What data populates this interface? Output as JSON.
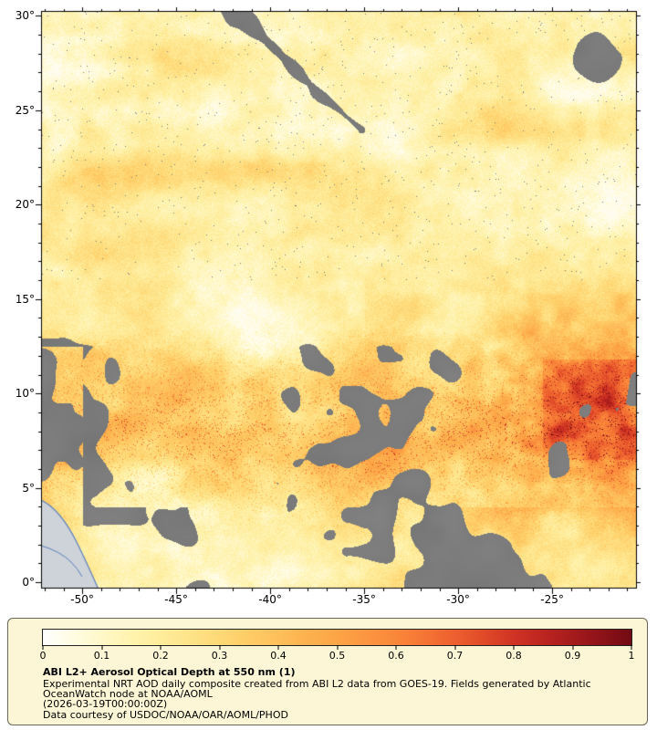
{
  "map": {
    "y_axis": {
      "ticks": [
        {
          "label": "30°",
          "lat": 30
        },
        {
          "label": "25°",
          "lat": 25
        },
        {
          "label": "20°",
          "lat": 20
        },
        {
          "label": "15°",
          "lat": 15
        },
        {
          "label": "10°",
          "lat": 10
        },
        {
          "label": "5°",
          "lat": 5
        },
        {
          "label": "0°",
          "lat": 0
        }
      ]
    },
    "x_axis": {
      "ticks": [
        {
          "label": "-50°",
          "lon": -50
        },
        {
          "label": "-45°",
          "lon": -45
        },
        {
          "label": "-40°",
          "lon": -40
        },
        {
          "label": "-35°",
          "lon": -35
        },
        {
          "label": "-30°",
          "lon": -30
        },
        {
          "label": "-25°",
          "lon": -25
        }
      ]
    }
  },
  "legend": {
    "title": "ABI L2+ Aerosol Optical Depth at 550 nm (1)",
    "description_lines": [
      "Experimental NRT AOD daily composite created from ABI L2 data from GOES-19. Fields generated by Atlantic",
      "OceanWatch node at NOAA/AOML"
    ],
    "timestamp_line": "(2026-03-19T00:00:00Z)",
    "courtesy": "Data courtesy of USDOC/NOAA/OAR/AOML/PHOD",
    "colorbar": {
      "min": 0,
      "max": 1,
      "tick_labels": [
        "0",
        "0.1",
        "0.2",
        "0.3",
        "0.4",
        "0.5",
        "0.6",
        "0.7",
        "0.8",
        "0.9",
        "1"
      ],
      "stops": [
        [
          0.0,
          "#ffffff"
        ],
        [
          0.05,
          "#fffce3"
        ],
        [
          0.1,
          "#fff8c8"
        ],
        [
          0.15,
          "#fff3ae"
        ],
        [
          0.2,
          "#feed9b"
        ],
        [
          0.25,
          "#fee389"
        ],
        [
          0.3,
          "#fed976"
        ],
        [
          0.35,
          "#fecc66"
        ],
        [
          0.4,
          "#febf5a"
        ],
        [
          0.45,
          "#fdb14e"
        ],
        [
          0.5,
          "#fda546"
        ],
        [
          0.55,
          "#fc9540"
        ],
        [
          0.6,
          "#fa873a"
        ],
        [
          0.65,
          "#f57434"
        ],
        [
          0.7,
          "#ed5f2f"
        ],
        [
          0.75,
          "#e04a28"
        ],
        [
          0.8,
          "#d03324"
        ],
        [
          0.85,
          "#bc2520"
        ],
        [
          0.9,
          "#a51b1d"
        ],
        [
          0.95,
          "#8c1218"
        ],
        [
          1.0,
          "#720a13"
        ]
      ]
    }
  },
  "colors": {
    "missing_data": "#7a7a7a",
    "land": "#cdd3d8",
    "coastline": "#5b7fc0",
    "legend_background": "#fdf6d6",
    "frame": "#000000"
  },
  "chart_data": {
    "type": "heatmap",
    "title": "ABI L2+ Aerosol Optical Depth at 550 nm (1)",
    "variable": "Aerosol optical depth at 550 nm",
    "satellite_source": "GOES-19",
    "timestamp": "2026-03-19T00:00:00Z",
    "xlabel": "",
    "ylabel": "",
    "x_axis": {
      "range_deg_lon": [
        -52.2,
        -20.5
      ],
      "tick_values": [
        -50,
        -45,
        -40,
        -35,
        -30,
        -25
      ],
      "tick_labels": [
        "-50°",
        "-45°",
        "-40°",
        "-35°",
        "-30°",
        "-25°"
      ]
    },
    "y_axis": {
      "range_deg_lat": [
        -0.3,
        30.3
      ],
      "tick_values": [
        30,
        25,
        20,
        15,
        10,
        5,
        0
      ],
      "tick_labels": [
        "30°",
        "25°",
        "20°",
        "15°",
        "10°",
        "5°",
        "0°"
      ]
    },
    "colorbar": {
      "range": [
        0,
        1
      ],
      "tick_values": [
        0,
        0.1,
        0.2,
        0.3,
        0.4,
        0.5,
        0.6,
        0.7,
        0.8,
        0.9,
        1
      ],
      "orientation": "horizontal",
      "position": "bottom"
    },
    "legend_position": "bottom panel",
    "grid": false,
    "notes": "Yellow-orange-red shading shows AOD magnitude over the tropical Atlantic; gray areas are missing or cloud-masked data concentrated south of ~13°N and in a diagonal band near the top; an elevated dust plume (AOD 0.4-1.0) spans ~3°N-13°N strengthening toward the east; South American coastline with land in light gray appears in the lower-left corner."
  }
}
